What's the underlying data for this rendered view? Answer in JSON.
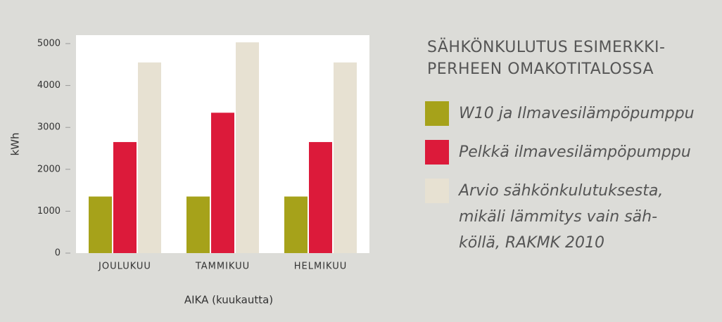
{
  "chart_data": {
    "type": "bar",
    "title": "SÄHKÖNKULUTUS ESIMERKKI-\nPERHEEN OMAKOTITALOSSA",
    "x_label": "AIKA (kuukautta)",
    "y_label": "kWh",
    "categories": [
      "JOULUKUU",
      "TAMMIKUU",
      "HELMIKUU"
    ],
    "series": [
      {
        "name": "W10 ja Ilmavesilämpöpumppu",
        "color": "#a6a21a",
        "values": [
          1350,
          1350,
          1350
        ]
      },
      {
        "name": "Pelkkä ilmavesilämpöpumppu",
        "color": "#dc1a3a",
        "values": [
          2650,
          3350,
          2650
        ]
      },
      {
        "name": "Arvio sähkönkulutuksesta,\nmikäli lämmitys vain säh-\nköllä, RAKMK 2010",
        "color": "#e7e1d2",
        "values": [
          4550,
          5030,
          4550
        ]
      }
    ],
    "ylim": [
      0,
      5000
    ],
    "yticks": [
      0,
      1000,
      2000,
      3000,
      4000,
      5000
    ],
    "grid": false
  }
}
